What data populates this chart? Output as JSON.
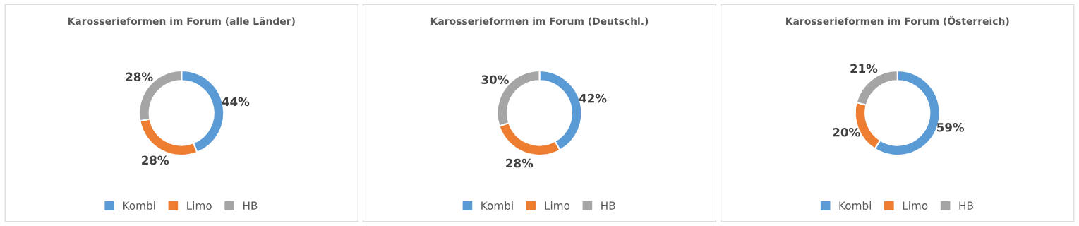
{
  "chart_data": [
    {
      "type": "donut",
      "title": "Karosserieformen im Forum (alle Länder)",
      "categories": [
        "Kombi",
        "Limo",
        "HB"
      ],
      "values": [
        44,
        28,
        28
      ],
      "colors": [
        "#5b9bd5",
        "#ed7d31",
        "#a5a5a5"
      ],
      "value_labels": [
        "44%",
        "28%",
        "28%"
      ],
      "legend": "bottom"
    },
    {
      "type": "donut",
      "title": "Karosserieformen im Forum (Deutschl.)",
      "categories": [
        "Kombi",
        "Limo",
        "HB"
      ],
      "values": [
        42,
        28,
        30
      ],
      "colors": [
        "#5b9bd5",
        "#ed7d31",
        "#a5a5a5"
      ],
      "value_labels": [
        "42%",
        "28%",
        "30%"
      ],
      "legend": "bottom"
    },
    {
      "type": "donut",
      "title": "Karosserieformen im Forum (Österreich)",
      "categories": [
        "Kombi",
        "Limo",
        "HB"
      ],
      "values": [
        59,
        20,
        21
      ],
      "colors": [
        "#5b9bd5",
        "#ed7d31",
        "#a5a5a5"
      ],
      "value_labels": [
        "59%",
        "20%",
        "21%"
      ],
      "legend": "bottom"
    }
  ]
}
